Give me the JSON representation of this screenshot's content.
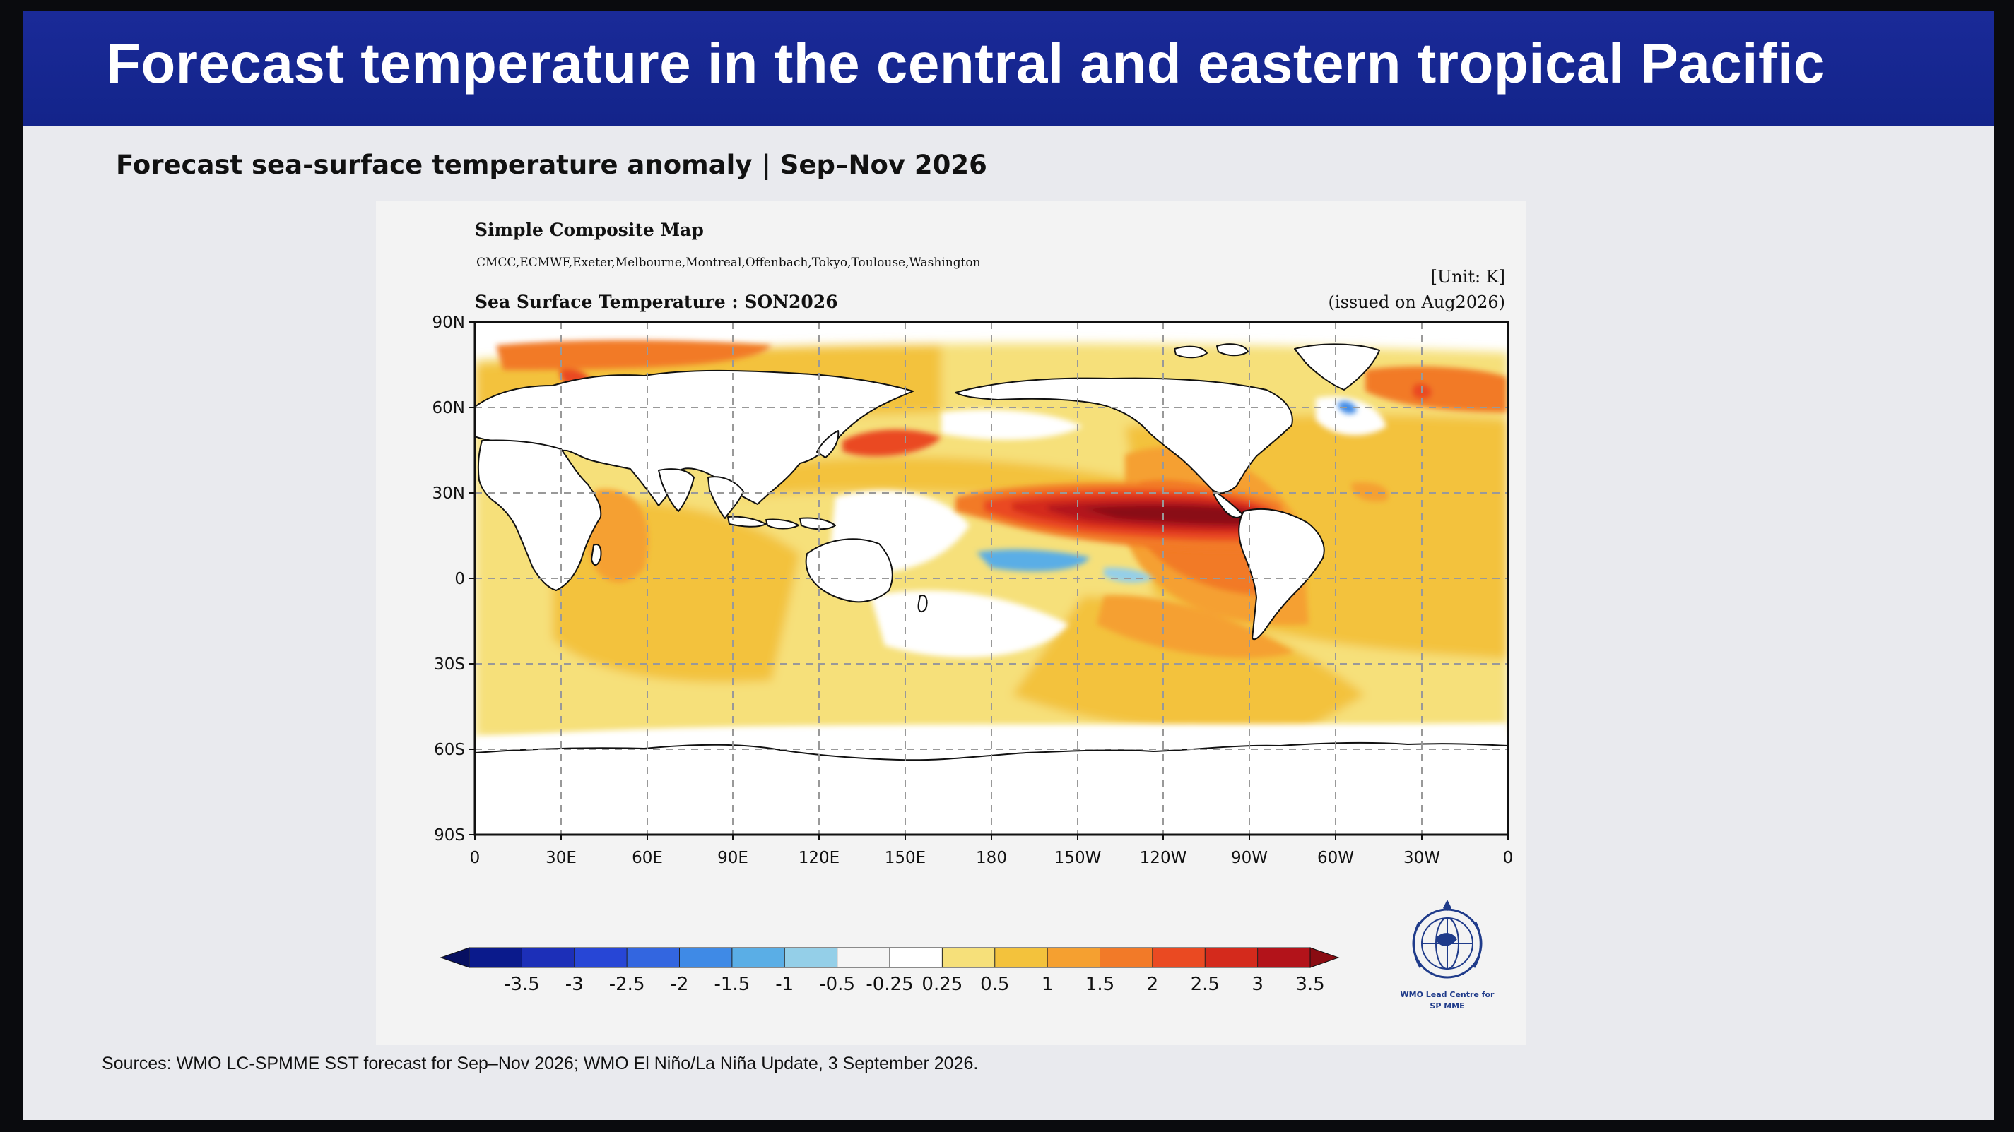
{
  "slide": {
    "title": "Forecast temperature in the central and eastern tropical Pacific",
    "subtitle": "Forecast sea-surface temperature anomaly | Sep–Nov 2026",
    "sources": "Sources: WMO LC-SPMME SST forecast for Sep–Nov 2026; WMO El Niño/La Niña Update, 3 September 2026."
  },
  "map": {
    "header": "Simple Composite Map",
    "models": "CMCC,ECMWF,Exeter,Melbourne,Montreal,Offenbach,Tokyo,Toulouse,Washington",
    "plot_title": "Sea Surface Temperature : SON2026",
    "unit": "[Unit: K]",
    "issued": "(issued on Aug2026)",
    "lat_labels": [
      "90N",
      "60N",
      "30N",
      "0",
      "30S",
      "60S",
      "90S"
    ],
    "lon_labels": [
      "0",
      "30E",
      "60E",
      "90E",
      "120E",
      "150E",
      "180",
      "150W",
      "120W",
      "90W",
      "60W",
      "30W",
      "0"
    ],
    "colorbar": {
      "labels": [
        "-3.5",
        "-3",
        "-2.5",
        "-2",
        "-1.5",
        "-1",
        "-0.5",
        "-0.25",
        "0.25",
        "0.5",
        "1",
        "1.5",
        "2",
        "2.5",
        "3",
        "3.5"
      ],
      "colors": [
        "#0a1a8c",
        "#1c2fb8",
        "#2746d6",
        "#3366e0",
        "#3f8ae6",
        "#5aaee6",
        "#94cfe8",
        "#f5f5f5",
        "#ffffff",
        "#f6e07a",
        "#f3c23c",
        "#f5a030",
        "#f27a28",
        "#ea4a22",
        "#d42a1c",
        "#b3131a"
      ],
      "under_color": "#071061",
      "over_color": "#8a0c12"
    },
    "logo": {
      "line1": "WMO Lead Centre for",
      "line2": "SP MME"
    }
  }
}
